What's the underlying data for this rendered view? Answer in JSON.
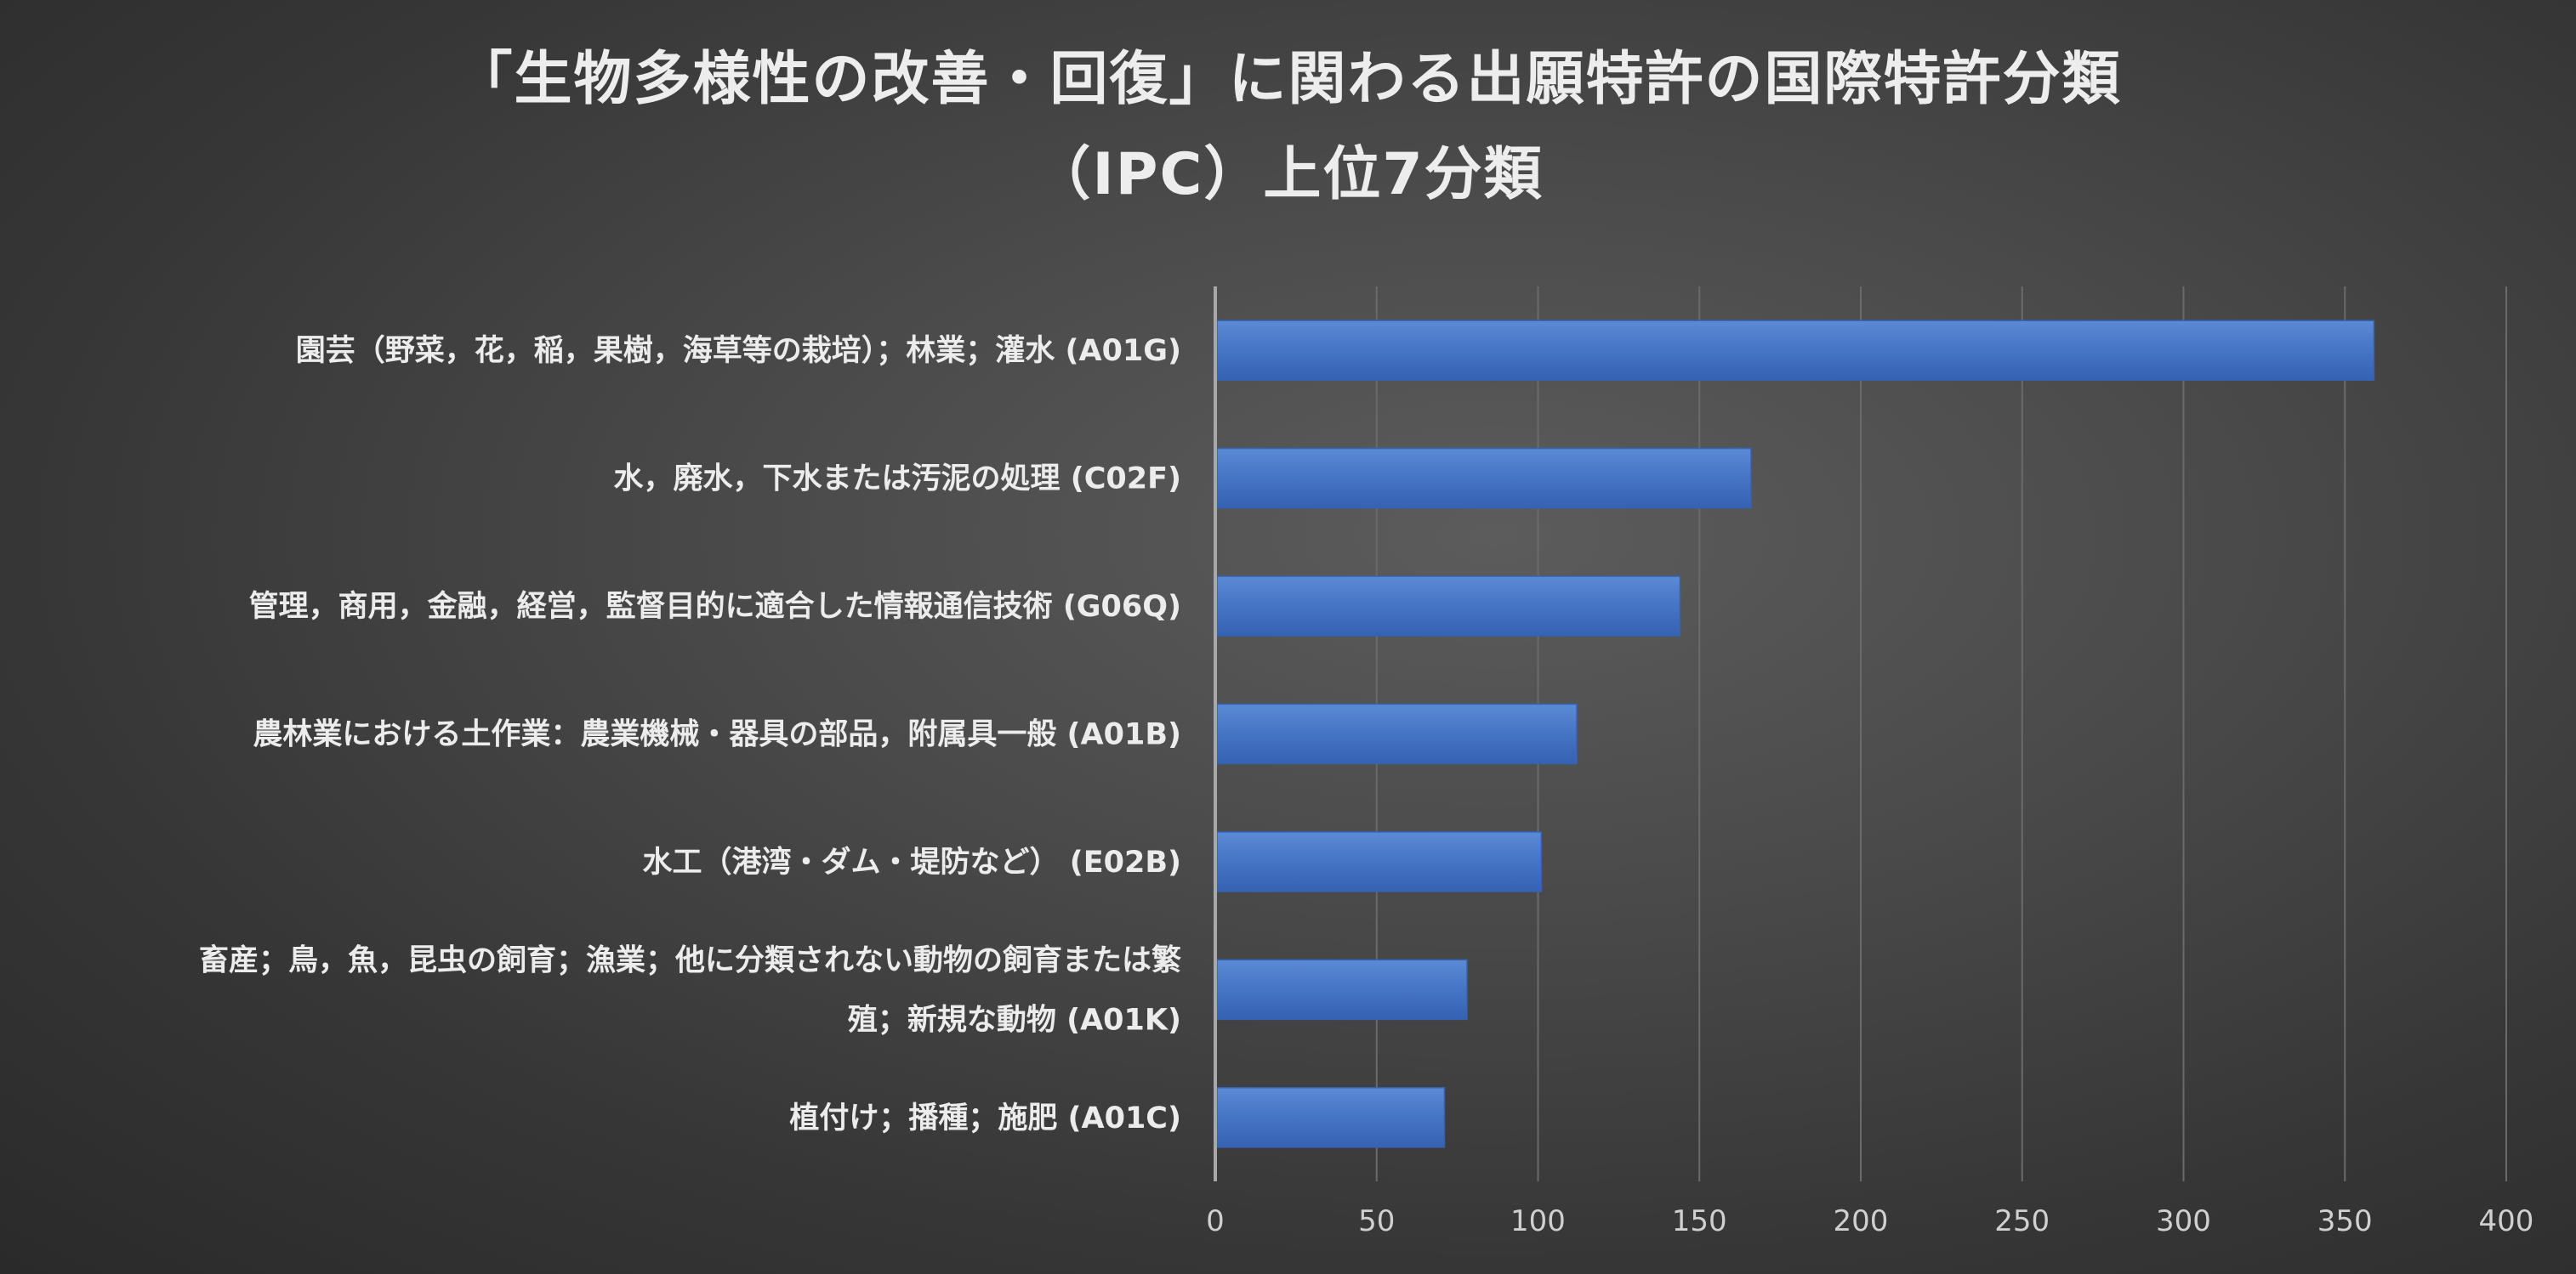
{
  "chart_data": {
    "type": "bar",
    "orientation": "horizontal",
    "title_lines": [
      "「生物多様性の改善・回復」に関わる出願特許の国際特許分類",
      "（IPC）上位7分類"
    ],
    "categories": [
      [
        "園芸（野菜，花，稲，果樹，海草等の栽培）；林業；灌水 (A01G)"
      ],
      [
        "水，廃水，下水または汚泥の処理 (C02F)"
      ],
      [
        "管理，商用，金融，経営，監督目的に適合した情報通信技術 (G06Q)"
      ],
      [
        "農林業における土作業：農業機械・器具の部品，附属具一般 (A01B)"
      ],
      [
        "水工（港湾・ダム・堤防など） (E02B)"
      ],
      [
        "畜産；鳥，魚，昆虫の飼育；漁業；他に分類されない動物の飼育または繁",
        "殖；新規な動物 (A01K)"
      ],
      [
        "植付け；播種；施肥 (A01C)"
      ]
    ],
    "values": [
      359,
      166,
      144,
      112,
      101,
      78,
      71
    ],
    "xlim": [
      0,
      400
    ],
    "xticks": [
      "0",
      "50",
      "100",
      "150",
      "200",
      "250",
      "300",
      "350",
      "400"
    ],
    "grid": true,
    "legend": "none",
    "colors": {
      "bar": "#4472c4",
      "bar_light": "#5b8ad6",
      "bar_dark": "#3562b3",
      "grid": "#6a6a6a",
      "axis": "#a8a8a8"
    }
  }
}
